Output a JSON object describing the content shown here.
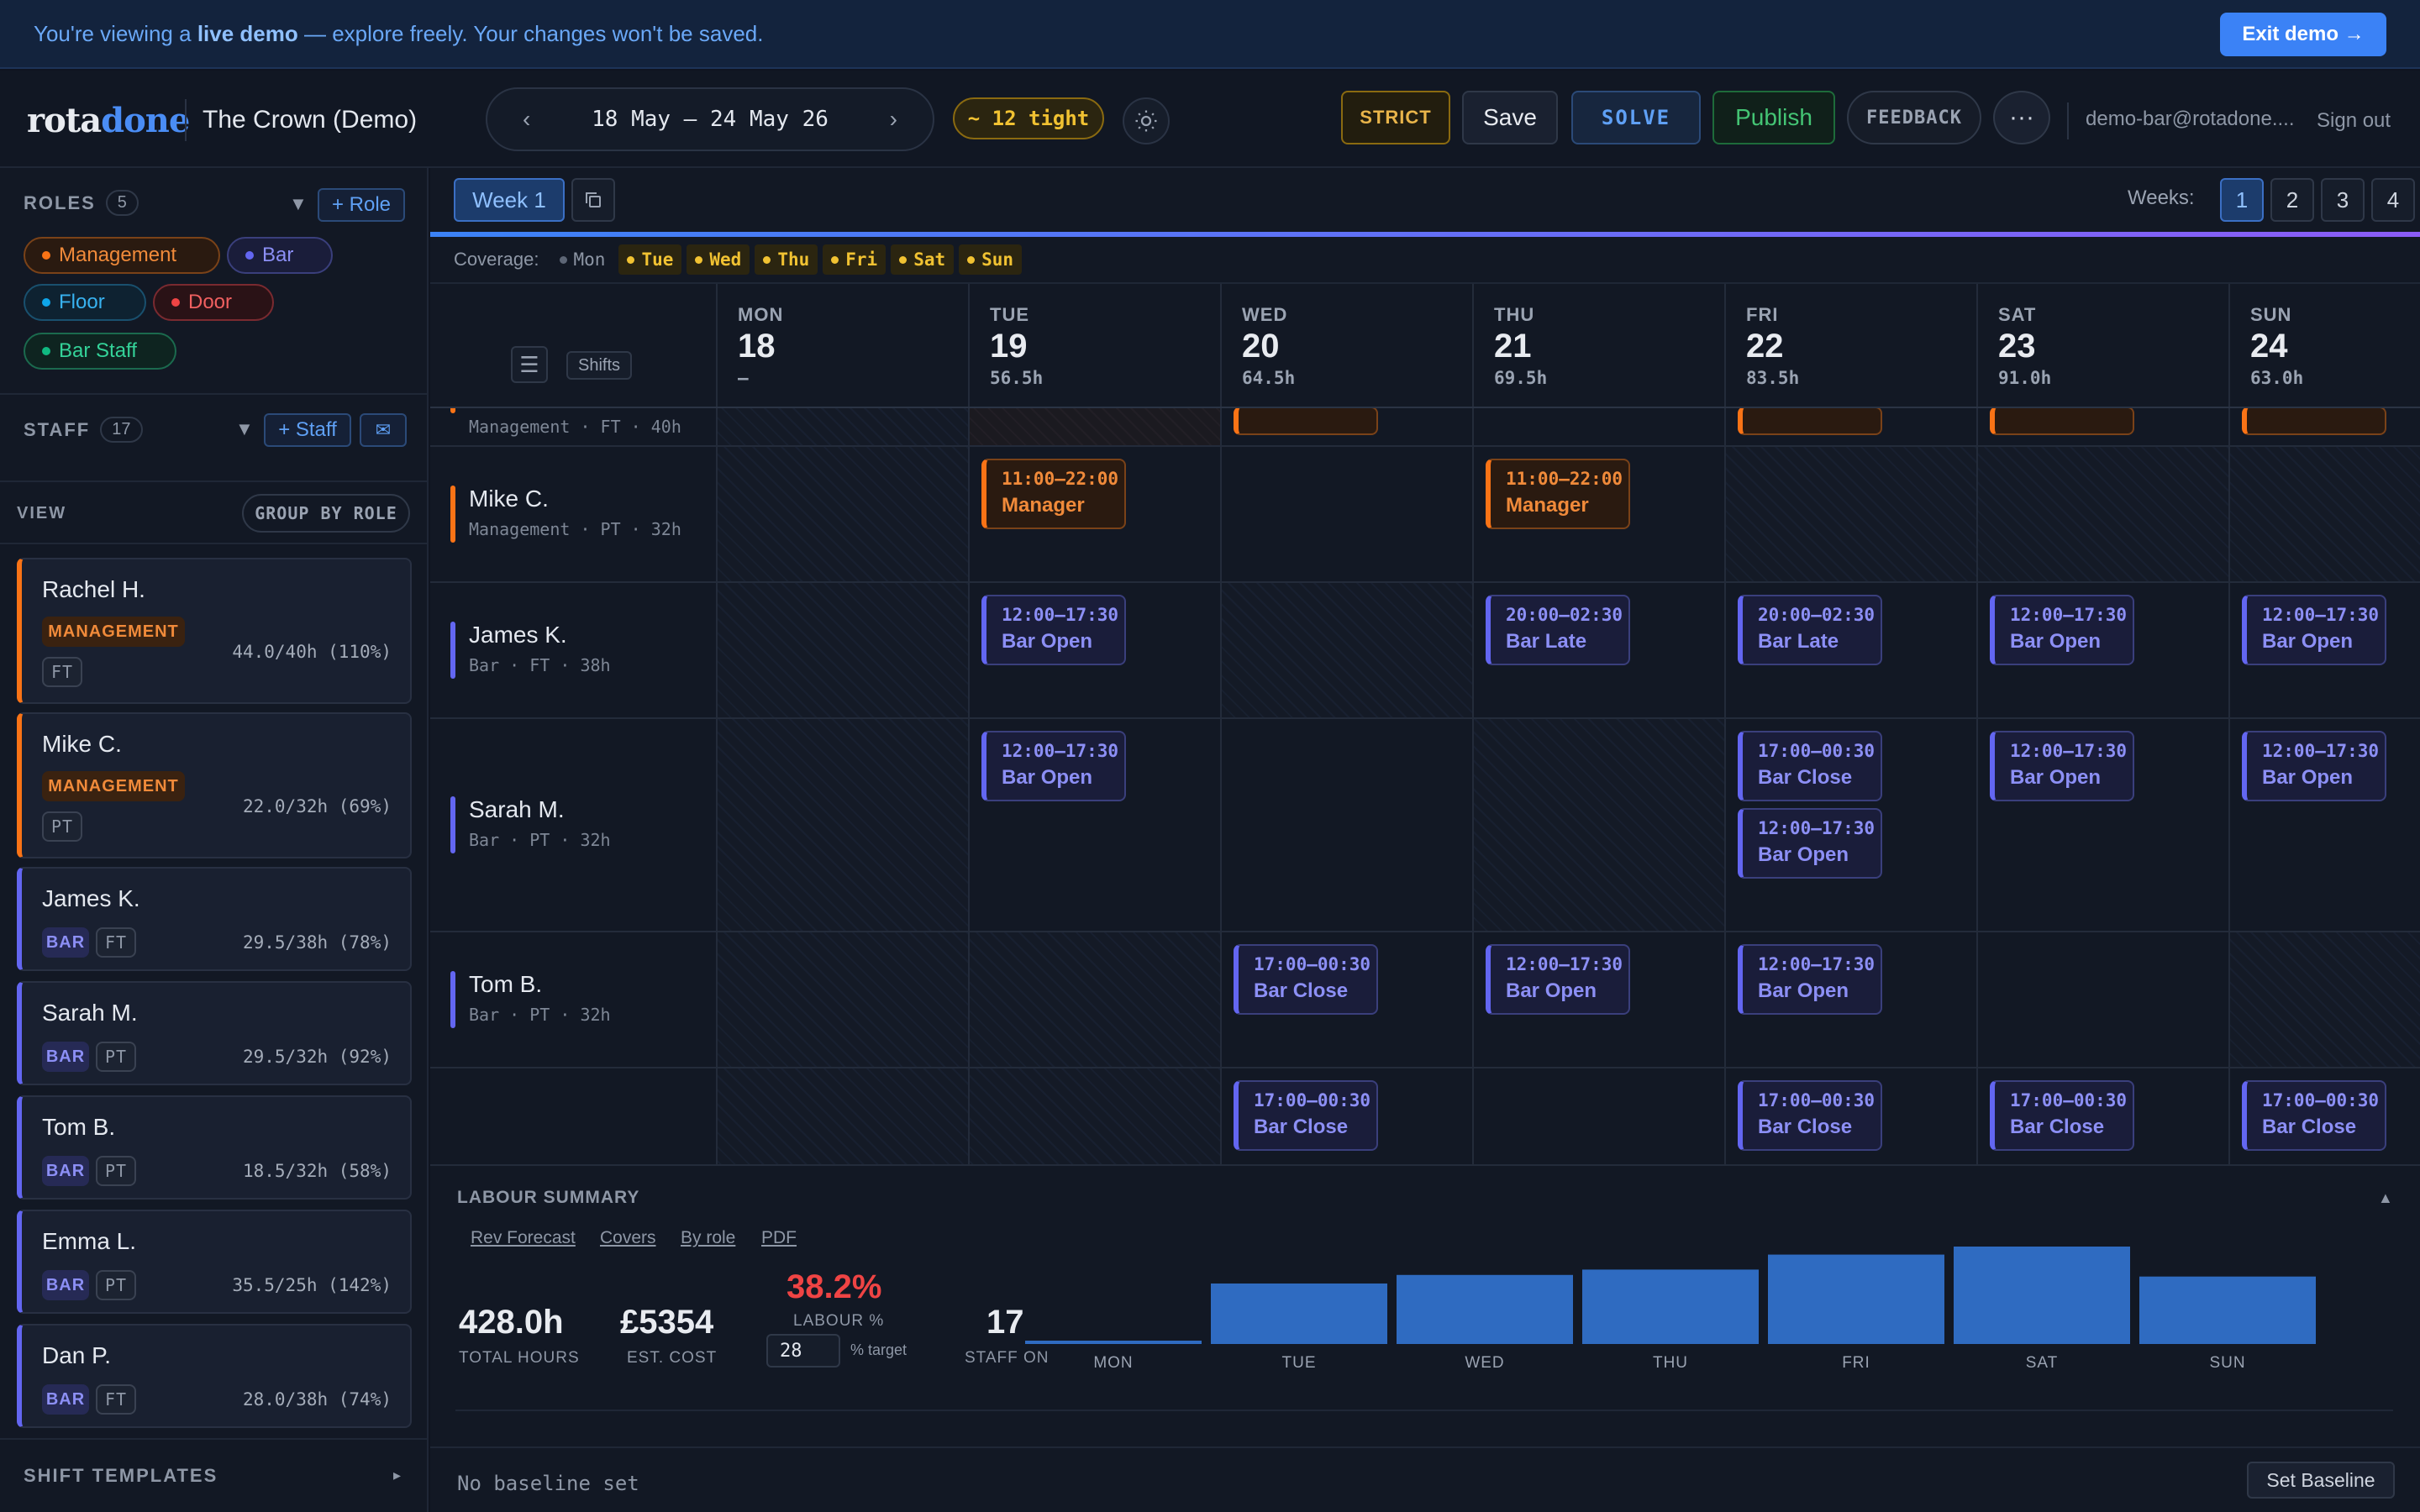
{
  "banner": {
    "prefix": "You're viewing a",
    "bold": "live demo",
    "suffix": "— explore freely. Your changes won't be saved.",
    "exit_label": "Exit demo →"
  },
  "header": {
    "logo_a": "rota",
    "logo_b": "done",
    "venue": "The Crown (Demo)",
    "prev_icon": "‹",
    "next_icon": "›",
    "date_range": "18 May – 24 May 26",
    "tight_badge": "~ 12 tight",
    "strict_label": "STRICT",
    "save_label": "Save",
    "solve_label": "SOLVE",
    "publish_label": "Publish",
    "feedback_label": "FEEDBACK",
    "more_label": "···",
    "user_email": "demo-bar@rotadone....",
    "signout_label": "Sign out"
  },
  "sidebar": {
    "roles_title": "ROLES",
    "roles_count": "5",
    "add_role_label": "+ Role",
    "roles": [
      {
        "label": "Management",
        "color": "#f97316"
      },
      {
        "label": "Bar",
        "color": "#6366f1"
      },
      {
        "label": "Floor",
        "color": "#0ea5e9"
      },
      {
        "label": "Door",
        "color": "#ef4444"
      },
      {
        "label": "Bar Staff",
        "color": "#10b981"
      }
    ],
    "staff_title": "STAFF",
    "staff_count": "17",
    "add_staff_label": "+ Staff",
    "mail_icon": "✉",
    "view_label": "VIEW",
    "group_label": "GROUP BY ROLE",
    "staff": [
      {
        "name": "Rachel H.",
        "role": "MANAGEMENT",
        "type": "FT",
        "hours": "44.0/40h (110%)"
      },
      {
        "name": "Mike C.",
        "role": "MANAGEMENT",
        "type": "PT",
        "hours": "22.0/32h (69%)"
      },
      {
        "name": "James K.",
        "role": "BAR",
        "type": "FT",
        "hours": "29.5/38h (78%)"
      },
      {
        "name": "Sarah M.",
        "role": "BAR",
        "type": "PT",
        "hours": "29.5/32h (92%)"
      },
      {
        "name": "Tom B.",
        "role": "BAR",
        "type": "PT",
        "hours": "18.5/32h (58%)"
      },
      {
        "name": "Emma L.",
        "role": "BAR",
        "type": "PT",
        "hours": "35.5/25h (142%)"
      },
      {
        "name": "Dan P.",
        "role": "BAR",
        "type": "FT",
        "hours": "28.0/38h (74%)"
      }
    ],
    "templates_title": "SHIFT TEMPLATES",
    "templates_arrow": "▸"
  },
  "toolbar": {
    "week_label": "Week 1",
    "weeks_label": "Weeks:",
    "weeks": [
      "1",
      "2",
      "3",
      "4"
    ]
  },
  "coverage": {
    "label": "Coverage:",
    "days": [
      {
        "day": "Mon",
        "status": "ok"
      },
      {
        "day": "Tue",
        "status": "warn"
      },
      {
        "day": "Wed",
        "status": "warn"
      },
      {
        "day": "Thu",
        "status": "warn"
      },
      {
        "day": "Fri",
        "status": "warn"
      },
      {
        "day": "Sat",
        "status": "warn"
      },
      {
        "day": "Sun",
        "status": "warn"
      }
    ]
  },
  "grid": {
    "menu_icon": "☰",
    "shifts_label": "Shifts",
    "days": [
      {
        "name": "MON",
        "date": "18",
        "hours": "–"
      },
      {
        "name": "TUE",
        "date": "19",
        "hours": "56.5h"
      },
      {
        "name": "WED",
        "date": "20",
        "hours": "64.5h"
      },
      {
        "name": "THU",
        "date": "21",
        "hours": "69.5h"
      },
      {
        "name": "FRI",
        "date": "22",
        "hours": "83.5h"
      },
      {
        "name": "SAT",
        "date": "23",
        "hours": "91.0h"
      },
      {
        "name": "SUN",
        "date": "24",
        "hours": "63.0h"
      }
    ],
    "rows": [
      {
        "name": "",
        "sub": "Management · FT · 40h"
      },
      {
        "name": "Mike C.",
        "sub": "Management · PT · 32h"
      },
      {
        "name": "James K.",
        "sub": "Bar · FT · 38h"
      },
      {
        "name": "Sarah M.",
        "sub": "Bar · PT · 32h"
      },
      {
        "name": "Tom B.",
        "sub": "Bar · PT · 32h"
      },
      {
        "name": "",
        "sub": ""
      }
    ],
    "shifts": {
      "mike_tue": {
        "time": "11:00–22:00",
        "name": "Manager"
      },
      "mike_thu": {
        "time": "11:00–22:00",
        "name": "Manager"
      },
      "james_tue": {
        "time": "12:00–17:30",
        "name": "Bar Open"
      },
      "james_thu": {
        "time": "20:00–02:30",
        "name": "Bar Late"
      },
      "james_fri": {
        "time": "20:00–02:30",
        "name": "Bar Late"
      },
      "james_sat": {
        "time": "12:00–17:30",
        "name": "Bar Open"
      },
      "james_sun": {
        "time": "12:00–17:30",
        "name": "Bar Open"
      },
      "sarah_tue": {
        "time": "12:00–17:30",
        "name": "Bar Open"
      },
      "sarah_fri1": {
        "time": "17:00–00:30",
        "name": "Bar Close"
      },
      "sarah_fri2": {
        "time": "12:00–17:30",
        "name": "Bar Open"
      },
      "sarah_sat": {
        "time": "12:00–17:30",
        "name": "Bar Open"
      },
      "sarah_sun": {
        "time": "12:00–17:30",
        "name": "Bar Open"
      },
      "tom_wed": {
        "time": "17:00–00:30",
        "name": "Bar Close"
      },
      "tom_thu": {
        "time": "12:00–17:30",
        "name": "Bar Open"
      },
      "tom_fri": {
        "time": "12:00–17:30",
        "name": "Bar Open"
      },
      "next_wed": {
        "time": "17:00–00:30",
        "name": "Bar Close"
      },
      "next_fri": {
        "time": "17:00–00:30",
        "name": "Bar Close"
      },
      "next_sat": {
        "time": "17:00–00:30",
        "name": "Bar Close"
      },
      "next_sun": {
        "time": "17:00–00:30",
        "name": "Bar Close"
      }
    }
  },
  "labour": {
    "title": "LABOUR SUMMARY",
    "collapse_icon": "▲",
    "links": [
      "Rev Forecast",
      "Covers",
      "By role",
      "PDF"
    ],
    "total_hours": "428.0h",
    "total_hours_label": "TOTAL HOURS",
    "est_cost": "£5354",
    "est_cost_label": "EST. COST",
    "labour_pct": "38.2%",
    "labour_pct_label": "LABOUR %",
    "target_value": "28",
    "target_label": "% target",
    "staff_on": "17",
    "staff_on_label": "STAFF ON"
  },
  "chart_data": {
    "type": "bar",
    "categories": [
      "MON",
      "TUE",
      "WED",
      "THU",
      "FRI",
      "SAT",
      "SUN"
    ],
    "values": [
      0,
      56.5,
      64.5,
      69.5,
      83.5,
      91.0,
      63.0
    ],
    "title": "",
    "xlabel": "",
    "ylabel": "",
    "ylim": [
      0,
      91.0
    ],
    "grid": false,
    "color": "#2f6bc1"
  },
  "baseline": {
    "text": "No baseline set",
    "button_label": "Set Baseline"
  }
}
